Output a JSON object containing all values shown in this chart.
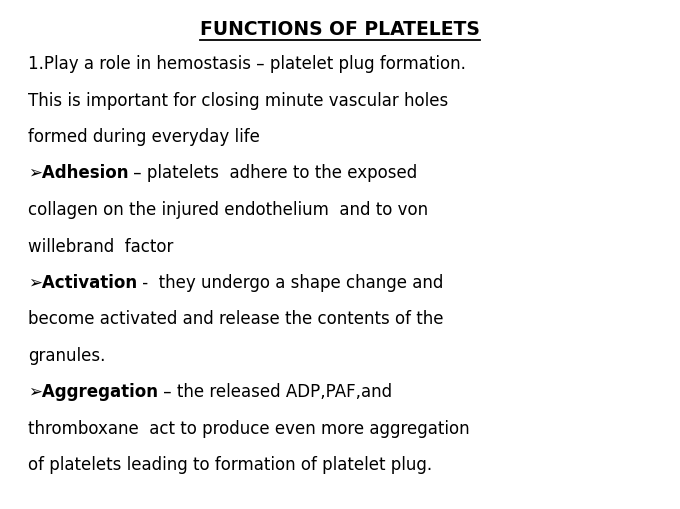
{
  "title": "FUNCTIONS OF PLATELETS",
  "background_color": "#ffffff",
  "text_color": "#000000",
  "title_fontsize": 13.5,
  "body_fontsize": 12.0,
  "lines": [
    {
      "type": "normal",
      "text": "1.Play a role in hemostasis – platelet plug formation."
    },
    {
      "type": "normal",
      "text": "This is important for closing minute vascular holes"
    },
    {
      "type": "normal",
      "text": "formed during everyday life"
    },
    {
      "type": "bullet_bold_normal",
      "bold": "➢Adhesion",
      "normal": " – platelets  adhere to the exposed"
    },
    {
      "type": "normal",
      "text": "collagen on the injured endothelium  and to von"
    },
    {
      "type": "normal",
      "text": "willebrand  factor"
    },
    {
      "type": "bullet_bold_normal",
      "bold": "➢Activation",
      "normal": " -  they undergo a shape change and"
    },
    {
      "type": "normal",
      "text": "become activated and release the contents of the"
    },
    {
      "type": "normal",
      "text": "granules."
    },
    {
      "type": "bullet_bold_normal",
      "bold": "➢Aggregation",
      "normal": " – the released ADP,PAF,and"
    },
    {
      "type": "normal",
      "text": "thromboxane  act to produce even more aggregation"
    },
    {
      "type": "normal",
      "text": "of platelets leading to formation of platelet plug."
    }
  ]
}
